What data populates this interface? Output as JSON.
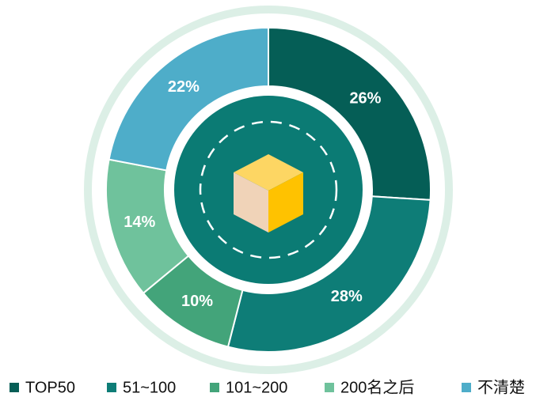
{
  "chart_data": {
    "type": "donut",
    "categories": [
      "TOP50",
      "51~100",
      "101~200",
      "200名之后",
      "不清楚"
    ],
    "values": [
      26,
      28,
      10,
      14,
      22
    ],
    "value_labels": [
      "26%",
      "28%",
      "10%",
      "14%",
      "22%"
    ],
    "colors": [
      "#055e56",
      "#0e7d77",
      "#43a47a",
      "#6fc29c",
      "#4eadc9"
    ],
    "legend": "bottom"
  }
}
